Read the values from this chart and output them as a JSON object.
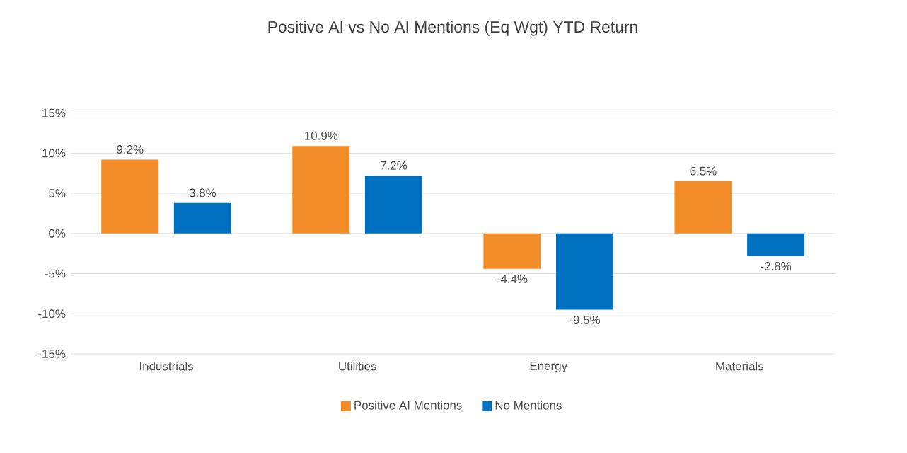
{
  "chart_data": {
    "type": "bar",
    "title": "Positive AI vs No AI Mentions (Eq Wgt) YTD Return",
    "categories": [
      "Industrials",
      "Utilities",
      "Energy",
      "Materials"
    ],
    "series": [
      {
        "name": "Positive AI Mentions",
        "color": "#f28c28",
        "values": [
          9.2,
          10.9,
          -4.4,
          6.5
        ],
        "value_labels": [
          "9.2%",
          "10.9%",
          "-4.4%",
          "6.5%"
        ]
      },
      {
        "name": "No Mentions",
        "color": "#0070c0",
        "values": [
          3.8,
          7.2,
          -9.5,
          -2.8
        ],
        "value_labels": [
          "3.8%",
          "7.2%",
          "-9.5%",
          "-2.8%"
        ]
      }
    ],
    "ylim": [
      -15,
      15
    ],
    "yticks": [
      {
        "value": -15,
        "label": "-15%"
      },
      {
        "value": -10,
        "label": "-10%"
      },
      {
        "value": -5,
        "label": "-5%"
      },
      {
        "value": 0,
        "label": "0%"
      },
      {
        "value": 5,
        "label": "5%"
      },
      {
        "value": 10,
        "label": "10%"
      },
      {
        "value": 15,
        "label": "15%"
      }
    ],
    "grid": "y",
    "legend": "bottom"
  }
}
